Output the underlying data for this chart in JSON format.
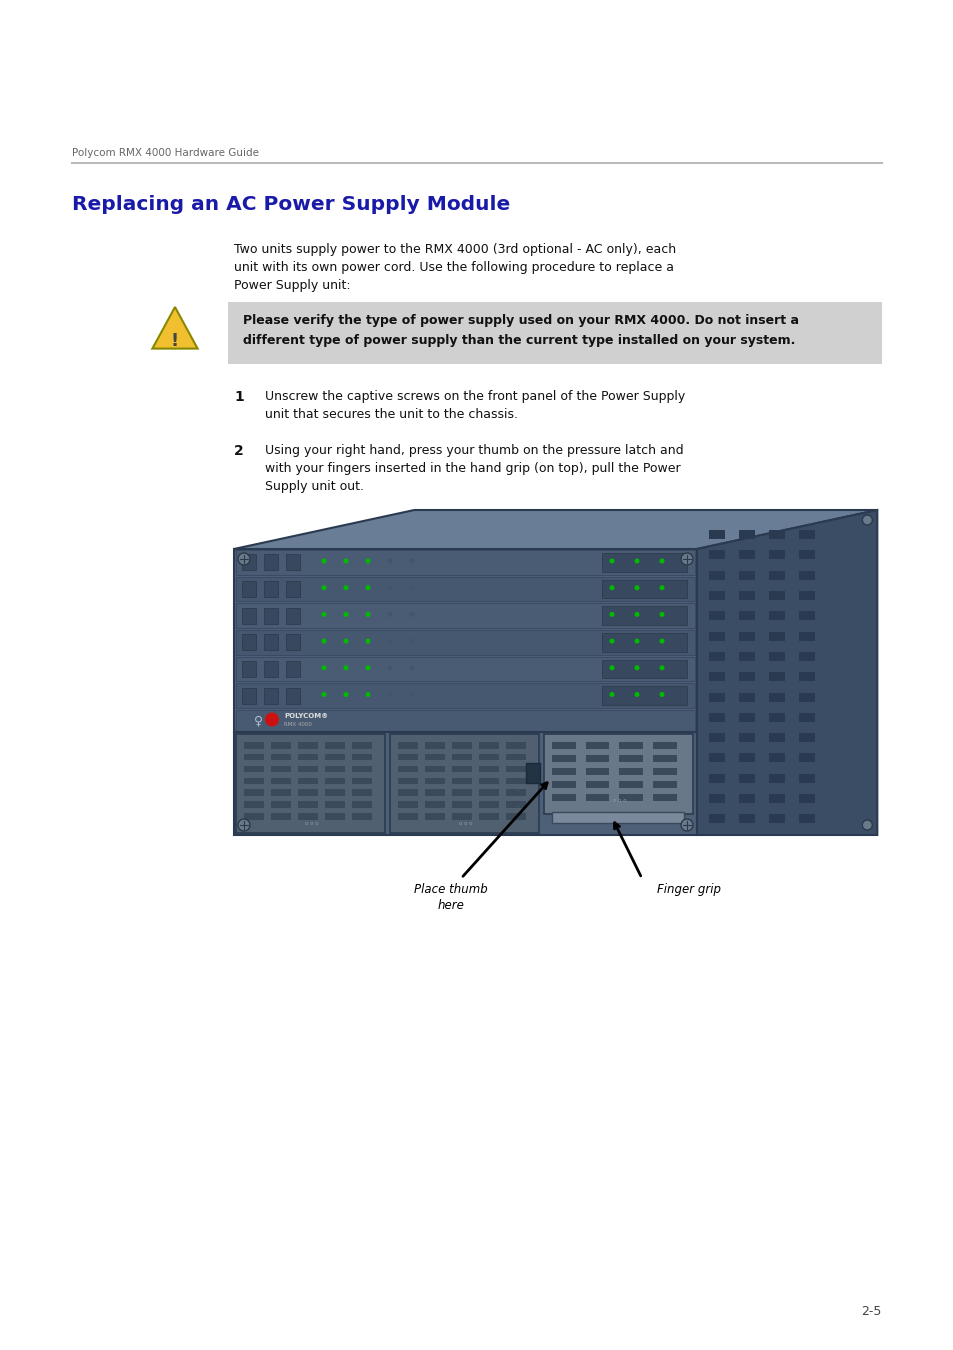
{
  "page_bg": "#ffffff",
  "header_text": "Polycom RMX 4000 Hardware Guide",
  "header_color": "#666666",
  "header_fontsize": 7.5,
  "title": "Replacing an AC Power Supply Module",
  "title_color": "#1a1aaa",
  "title_fontsize": 14.5,
  "body_text_color": "#111111",
  "body_fontsize": 9.0,
  "intro_line1": "Two units supply power to the RMX 4000 (3rd optional - AC only), each",
  "intro_line2": "unit with its own power cord. Use the following procedure to replace a",
  "intro_line3": "Power Supply unit:",
  "warning_line1": "Please verify the type of power supply used on your RMX 4000. Do not insert a",
  "warning_line2": "different type of power supply than the current type installed on your system.",
  "step1_line1": "Unscrew the captive screws on the front panel of the Power Supply",
  "step1_line2": "unit that secures the unit to the chassis.",
  "step2_line1": "Using your right hand, press your thumb on the pressure latch and",
  "step2_line2": "with your fingers inserted in the hand grip (on top), pull the Power",
  "step2_line3": "Supply unit out.",
  "label1": "Place thumb",
  "label1b": "here",
  "label2": "Finger grip",
  "footer_page": "2-5",
  "chassis_main": "#4e5f78",
  "chassis_dark": "#3a4d64",
  "chassis_light": "#6a7d96",
  "chassis_side": "#5a6e85",
  "vent_dark": "#2a3a50",
  "ps_color": "#546070",
  "ps_light": "#687888",
  "slot_line": "#3a4a62",
  "warning_bg": "#d0d0d0",
  "warn_yellow": "#f0c030",
  "warn_border": "#888800"
}
